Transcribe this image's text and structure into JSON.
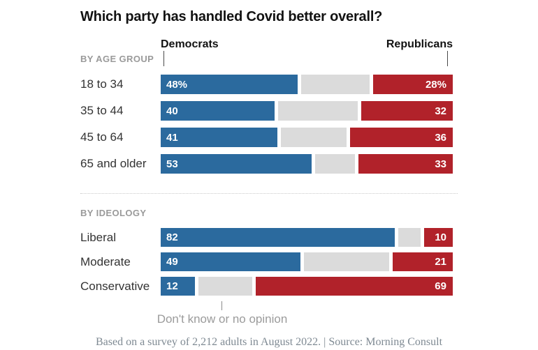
{
  "title": "Which party has handled Covid better overall?",
  "colors": {
    "dem": "#2b6a9e",
    "dk": "#dbdbdb",
    "rep": "#b1222a"
  },
  "header": {
    "dem_label": "Democrats",
    "rep_label": "Republicans"
  },
  "sections": [
    {
      "label": "BY AGE GROUP",
      "rows": [
        {
          "category": "18 to 34",
          "dem": 48,
          "dk": 24,
          "rep": 28,
          "dem_label": "48%",
          "rep_label": "28%"
        },
        {
          "category": "35 to 44",
          "dem": 40,
          "dk": 28,
          "rep": 32,
          "dem_label": "40",
          "rep_label": "32"
        },
        {
          "category": "45 to 64",
          "dem": 41,
          "dk": 23,
          "rep": 36,
          "dem_label": "41",
          "rep_label": "36"
        },
        {
          "category": "65 and older",
          "dem": 53,
          "dk": 14,
          "rep": 33,
          "dem_label": "53",
          "rep_label": "33"
        }
      ]
    },
    {
      "label": "BY IDEOLOGY",
      "rows": [
        {
          "category": "Liberal",
          "dem": 82,
          "dk": 8,
          "rep": 10,
          "dem_label": "82",
          "rep_label": "10"
        },
        {
          "category": "Moderate",
          "dem": 49,
          "dk": 30,
          "rep": 21,
          "dem_label": "49",
          "rep_label": "21"
        },
        {
          "category": "Conservative",
          "dem": 12,
          "dk": 19,
          "rep": 69,
          "dem_label": "12",
          "rep_label": "69"
        }
      ]
    }
  ],
  "annotation": {
    "label": "Don't know or no opinion"
  },
  "footer": {
    "text": "Based on a survey of 2,212 adults in August 2022. | Source: Morning Consult"
  },
  "chart_data": {
    "type": "bar",
    "orientation": "horizontal",
    "stacked": true,
    "title": "Which party has handled Covid better overall?",
    "xlim": [
      0,
      100
    ],
    "units": "percent",
    "legend_position": "column headers: Democrats (left), Republicans (right); gray middle segment annotated below as Don't know or no opinion",
    "groups": [
      {
        "label": "BY AGE GROUP",
        "categories": [
          "18 to 34",
          "35 to 44",
          "45 to 64",
          "65 and older"
        ],
        "series": [
          {
            "name": "Democrats",
            "color": "#2b6a9e",
            "values": [
              48,
              40,
              41,
              53
            ]
          },
          {
            "name": "Don't know or no opinion",
            "color": "#dbdbdb",
            "values": [
              24,
              28,
              23,
              14
            ]
          },
          {
            "name": "Republicans",
            "color": "#b1222a",
            "values": [
              28,
              32,
              36,
              33
            ]
          }
        ]
      },
      {
        "label": "BY IDEOLOGY",
        "categories": [
          "Liberal",
          "Moderate",
          "Conservative"
        ],
        "series": [
          {
            "name": "Democrats",
            "color": "#2b6a9e",
            "values": [
              82,
              49,
              12
            ]
          },
          {
            "name": "Don't know or no opinion",
            "color": "#dbdbdb",
            "values": [
              8,
              30,
              19
            ]
          },
          {
            "name": "Republicans",
            "color": "#b1222a",
            "values": [
              10,
              21,
              69
            ]
          }
        ]
      }
    ],
    "footnote": "Based on a survey of 2,212 adults in August 2022. | Source: Morning Consult"
  }
}
